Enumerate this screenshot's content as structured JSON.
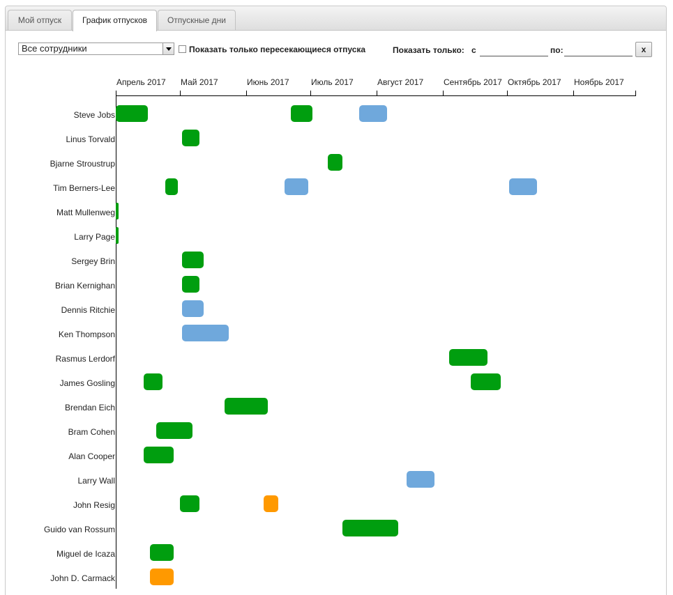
{
  "tabs": [
    {
      "label": "Мой отпуск",
      "active": false
    },
    {
      "label": "График отпусков",
      "active": true
    },
    {
      "label": "Отпускные дни",
      "active": false
    }
  ],
  "filters": {
    "employees_select": "Все сотрудники",
    "overlap_checkbox_label": "Показать только пересекающиеся отпуска",
    "overlap_checked": false,
    "show_only_label": "Показать только:",
    "from_label": "с",
    "to_label": "по:",
    "from_value": "",
    "to_value": "",
    "clear_label": "x"
  },
  "months": [
    "Апрель 2017",
    "Май 2017",
    "Июнь 2017",
    "Июль 2017",
    "Август 2017",
    "Сентябрь 2017",
    "Октябрь 2017",
    "Ноябрь 2017"
  ],
  "colors": {
    "approved": "#009e0f",
    "planned": "#6fa8dc",
    "pending": "#ff9900",
    "axis": "#000000"
  },
  "employees": [
    {
      "name": "Steve Jobs",
      "vacations": [
        {
          "start": "2017-04-01",
          "end": "2017-04-15",
          "status": "approved"
        },
        {
          "start": "2017-06-22",
          "end": "2017-07-01",
          "status": "approved"
        },
        {
          "start": "2017-07-24",
          "end": "2017-08-05",
          "status": "planned"
        }
      ]
    },
    {
      "name": "Linus Torvald",
      "vacations": [
        {
          "start": "2017-05-02",
          "end": "2017-05-09",
          "status": "approved"
        }
      ]
    },
    {
      "name": "Bjarne Stroustrup",
      "vacations": [
        {
          "start": "2017-07-09",
          "end": "2017-07-15",
          "status": "approved"
        }
      ]
    },
    {
      "name": "Tim Berners-Lee",
      "vacations": [
        {
          "start": "2017-04-24",
          "end": "2017-04-29",
          "status": "approved"
        },
        {
          "start": "2017-06-19",
          "end": "2017-06-29",
          "status": "planned"
        },
        {
          "start": "2017-10-02",
          "end": "2017-10-14",
          "status": "planned"
        }
      ]
    },
    {
      "name": "Matt Mullenweg",
      "vacations": [
        {
          "start": "2017-04-01",
          "end": "2017-04-01",
          "status": "approved"
        }
      ]
    },
    {
      "name": "Larry Page",
      "vacations": [
        {
          "start": "2017-04-01",
          "end": "2017-04-01",
          "status": "approved"
        }
      ]
    },
    {
      "name": "Sergey Brin",
      "vacations": [
        {
          "start": "2017-05-02",
          "end": "2017-05-11",
          "status": "approved"
        }
      ]
    },
    {
      "name": "Brian Kernighan",
      "vacations": [
        {
          "start": "2017-05-02",
          "end": "2017-05-09",
          "status": "approved"
        }
      ]
    },
    {
      "name": "Dennis Ritchie",
      "vacations": [
        {
          "start": "2017-05-02",
          "end": "2017-05-11",
          "status": "planned"
        }
      ]
    },
    {
      "name": "Ken Thompson",
      "vacations": [
        {
          "start": "2017-05-02",
          "end": "2017-05-23",
          "status": "planned"
        }
      ]
    },
    {
      "name": "Rasmus Lerdorf",
      "vacations": [
        {
          "start": "2017-09-04",
          "end": "2017-09-21",
          "status": "approved"
        }
      ]
    },
    {
      "name": "James Gosling",
      "vacations": [
        {
          "start": "2017-04-14",
          "end": "2017-04-22",
          "status": "approved"
        },
        {
          "start": "2017-09-14",
          "end": "2017-09-27",
          "status": "approved"
        }
      ]
    },
    {
      "name": "Brendan Eich",
      "vacations": [
        {
          "start": "2017-05-22",
          "end": "2017-06-10",
          "status": "approved"
        }
      ]
    },
    {
      "name": "Bram Cohen",
      "vacations": [
        {
          "start": "2017-04-20",
          "end": "2017-05-06",
          "status": "approved"
        }
      ]
    },
    {
      "name": "Alan Cooper",
      "vacations": [
        {
          "start": "2017-04-14",
          "end": "2017-04-27",
          "status": "approved"
        }
      ]
    },
    {
      "name": "Larry Wall",
      "vacations": [
        {
          "start": "2017-08-15",
          "end": "2017-08-27",
          "status": "planned"
        }
      ]
    },
    {
      "name": "John Resig",
      "vacations": [
        {
          "start": "2017-05-01",
          "end": "2017-05-09",
          "status": "approved"
        },
        {
          "start": "2017-06-09",
          "end": "2017-06-15",
          "status": "pending"
        }
      ]
    },
    {
      "name": "Guido van Rossum",
      "vacations": [
        {
          "start": "2017-07-16",
          "end": "2017-08-10",
          "status": "approved"
        }
      ]
    },
    {
      "name": "Miguel de Icaza",
      "vacations": [
        {
          "start": "2017-04-17",
          "end": "2017-04-27",
          "status": "approved"
        }
      ]
    },
    {
      "name": "John D. Carmack",
      "vacations": [
        {
          "start": "2017-04-17",
          "end": "2017-04-27",
          "status": "pending"
        }
      ]
    }
  ]
}
